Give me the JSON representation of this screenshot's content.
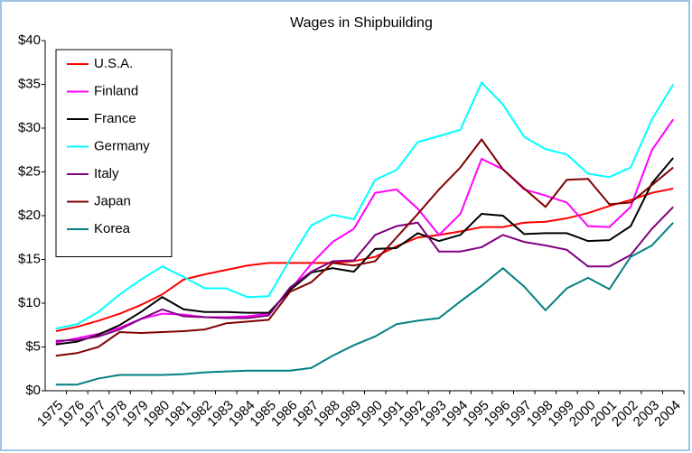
{
  "chart_data": {
    "type": "line",
    "title": "Wages in Shipbuilding",
    "categories": [
      "1975",
      "1976",
      "1977",
      "1978",
      "1979",
      "1980",
      "1981",
      "1982",
      "1983",
      "1984",
      "1985",
      "1986",
      "1987",
      "1988",
      "1989",
      "1990",
      "1991",
      "1992",
      "1993",
      "1994",
      "1995",
      "1996",
      "1997",
      "1998",
      "1999",
      "2000",
      "2001",
      "2002",
      "2003",
      "2004"
    ],
    "ylim": [
      0,
      40
    ],
    "yticks": [
      {
        "value": 0,
        "label": "$0"
      },
      {
        "value": 5,
        "label": "$5"
      },
      {
        "value": 10,
        "label": "$10"
      },
      {
        "value": 15,
        "label": "$15"
      },
      {
        "value": 20,
        "label": "$20"
      },
      {
        "value": 25,
        "label": "$25"
      },
      {
        "value": 30,
        "label": "$30"
      },
      {
        "value": 35,
        "label": "$35"
      },
      {
        "value": 40,
        "label": "$40"
      }
    ],
    "grid": false,
    "legend": "upper left",
    "series": [
      {
        "name": "U.S.A.",
        "color": "#ff0000",
        "values": [
          6.8,
          7.3,
          8,
          8.8,
          9.8,
          11,
          12.7,
          13.3,
          13.8,
          14.3,
          14.6,
          14.6,
          14.6,
          14.6,
          14.8,
          15.3,
          16.5,
          17.5,
          17.8,
          18.2,
          18.7,
          18.7,
          19.2,
          19.3,
          19.7,
          20.3,
          21.1,
          21.8,
          22.6,
          23.1
        ]
      },
      {
        "name": "Finland",
        "color": "#ff00ff",
        "values": [
          5.5,
          6,
          6.5,
          7.2,
          8.2,
          8.8,
          8.7,
          8.4,
          8.4,
          8.5,
          8.8,
          11.5,
          14.5,
          17,
          18.5,
          22.6,
          23,
          20.8,
          17.8,
          20.2,
          26.5,
          25.3,
          23,
          22.3,
          21.5,
          18.8,
          18.7,
          21,
          27.5,
          31
        ]
      },
      {
        "name": "France",
        "color": "#000000",
        "values": [
          5.3,
          5.6,
          6.4,
          7.5,
          9,
          10.7,
          9.3,
          9,
          9,
          8.9,
          8.9,
          11.5,
          13.5,
          14,
          13.6,
          16.2,
          16.3,
          18,
          17.1,
          17.8,
          20.2,
          20,
          17.9,
          18,
          18,
          17.1,
          17.2,
          18.8,
          23.7,
          26.6
        ]
      },
      {
        "name": "Germany",
        "color": "#00ffff",
        "values": [
          7.1,
          7.6,
          9,
          11,
          12.7,
          14.2,
          13,
          11.7,
          11.7,
          10.7,
          10.8,
          15,
          18.9,
          20.1,
          19.6,
          24.1,
          25.2,
          28.4,
          29.1,
          29.8,
          35.2,
          32.7,
          29,
          27.6,
          27,
          24.8,
          24.4,
          25.5,
          31,
          35
        ]
      },
      {
        "name": "Italy",
        "color": "#800080",
        "values": [
          5.7,
          5.8,
          6.2,
          7,
          8.2,
          9.3,
          8.5,
          8.4,
          8.3,
          8.3,
          8.6,
          11.8,
          13.6,
          14.8,
          14.9,
          17.8,
          18.8,
          19.2,
          15.9,
          15.9,
          16.4,
          17.8,
          17,
          16.6,
          16.1,
          14.2,
          14.2,
          15.5,
          18.5,
          21
        ]
      },
      {
        "name": "Japan",
        "color": "#800000",
        "values": [
          4,
          4.3,
          5,
          6.7,
          6.6,
          6.7,
          6.8,
          7,
          7.7,
          7.9,
          8.1,
          11.3,
          12.4,
          14.6,
          14.3,
          14.8,
          17.5,
          20.2,
          23,
          25.5,
          28.7,
          25.3,
          23.1,
          21,
          24.1,
          24.2,
          21.3,
          21.5,
          23.5,
          25.5
        ]
      },
      {
        "name": "Korea",
        "color": "#008080",
        "values": [
          0.7,
          0.7,
          1.4,
          1.8,
          1.8,
          1.8,
          1.9,
          2.1,
          2.2,
          2.3,
          2.3,
          2.3,
          2.6,
          4,
          5.2,
          6.2,
          7.6,
          8,
          8.3,
          10.2,
          12,
          14,
          11.9,
          9.2,
          11.7,
          12.9,
          11.6,
          15.3,
          16.6,
          19.2
        ]
      }
    ]
  }
}
